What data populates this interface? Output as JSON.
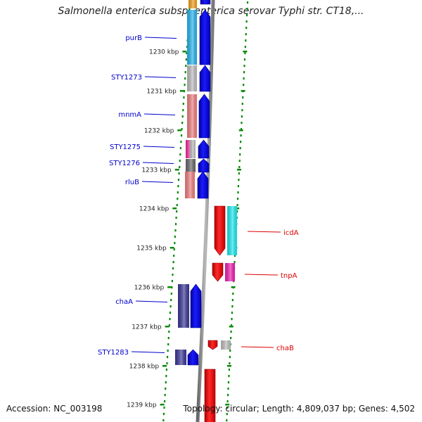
{
  "title": "Salmonella enterica subsp. enterica serovar Typhi str. CT18,...",
  "footer": {
    "accession": "Accession: NC_003198",
    "topology": "Topology: circular; Length: 4,809,037 bp; Genes: 4,502"
  },
  "colors": {
    "forward_label": "#0000cc",
    "reverse_label": "#dd0000",
    "tick": "#0a8a0a",
    "backbone": "#888888",
    "blue_arrow": "#0a0ae6",
    "red_arrow": "#ee0000"
  },
  "ticks": [
    {
      "label": "1230 kbp"
    },
    {
      "label": "1231 kbp"
    },
    {
      "label": "1232 kbp"
    },
    {
      "label": "1233 kbp"
    },
    {
      "label": "1234 kbp"
    },
    {
      "label": "1235 kbp"
    },
    {
      "label": "1236 kbp"
    },
    {
      "label": "1237 kbp"
    },
    {
      "label": "1238 kbp"
    },
    {
      "label": "1239 kbp"
    }
  ],
  "forward_genes": [
    {
      "name": "purB",
      "cog_color": "#27b4ee"
    },
    {
      "name": "STY1273",
      "cog_color": "#bdbdbd"
    },
    {
      "name": "mnmA",
      "cog_color": "#ef7f7f"
    },
    {
      "name": "STY1275",
      "cog_color": "#ee2a9e"
    },
    {
      "name": "STY1276",
      "cog_color": "#6a6a6a"
    },
    {
      "name": "rluB",
      "cog_color": "#ef7f7f"
    },
    {
      "name": "chaA",
      "cog_color": "#3c3896"
    },
    {
      "name": "STY1283",
      "cog_color": "#3c3896"
    }
  ],
  "reverse_genes": [
    {
      "name": "icdA",
      "cog_color": "#1fe9f0"
    },
    {
      "name": "tnpA",
      "cog_color": "#f01fb0"
    },
    {
      "name": "chaB",
      "cog_color": "#bdbdbd"
    }
  ]
}
